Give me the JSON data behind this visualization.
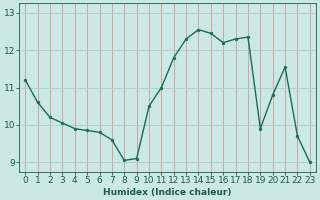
{
  "title": "",
  "xlabel": "Humidex (Indice chaleur)",
  "ylabel": "",
  "x_values": [
    0,
    1,
    2,
    3,
    4,
    5,
    6,
    7,
    8,
    9,
    10,
    11,
    12,
    13,
    14,
    15,
    16,
    17,
    18,
    19,
    20,
    21,
    22,
    23
  ],
  "y_values": [
    11.2,
    10.6,
    10.2,
    10.05,
    9.9,
    9.85,
    9.8,
    9.6,
    9.05,
    9.1,
    10.5,
    11.0,
    11.8,
    12.3,
    12.55,
    12.45,
    12.2,
    12.3,
    12.35,
    9.9,
    10.8,
    11.55,
    9.7,
    9.0
  ],
  "ylim": [
    8.75,
    13.25
  ],
  "yticks": [
    9,
    10,
    11,
    12,
    13
  ],
  "xticks": [
    0,
    1,
    2,
    3,
    4,
    5,
    6,
    7,
    8,
    9,
    10,
    11,
    12,
    13,
    14,
    15,
    16,
    17,
    18,
    19,
    20,
    21,
    22,
    23
  ],
  "line_color": "#1a6b5a",
  "marker_color": "#1a6b5a",
  "bg_color": "#cce8e4",
  "vgrid_color": "#cc9999",
  "hgrid_color": "#aacfcc",
  "axis_color": "#1a5a50",
  "xlabel_fontsize": 6.5,
  "tick_fontsize": 6.5,
  "linewidth": 1.0,
  "marker_size": 2.0
}
